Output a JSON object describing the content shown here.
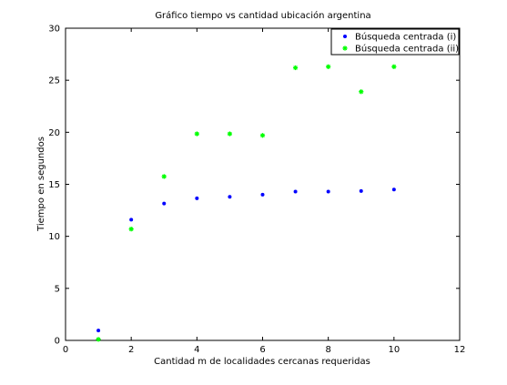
{
  "chart_data": {
    "type": "scatter",
    "title": "Gráfico tiempo vs cantidad ubicación argentina",
    "xlabel": "Cantidad m de localidades cercanas requeridas",
    "ylabel": "Tiempo en segundos",
    "xlim": [
      0,
      12
    ],
    "ylim": [
      0,
      30
    ],
    "xticks": [
      "0",
      "2",
      "4",
      "6",
      "8",
      "10",
      "12"
    ],
    "yticks": [
      "0",
      "5",
      "10",
      "15",
      "20",
      "25",
      "30"
    ],
    "grid": false,
    "legend_position": "top-right",
    "series": [
      {
        "name": "Búsqueda centrada (i)",
        "color": "#0000ff",
        "marker": "point",
        "x": [
          1,
          2,
          3,
          4,
          5,
          6,
          7,
          8,
          9,
          10
        ],
        "y": [
          0.95,
          11.6,
          13.15,
          13.65,
          13.8,
          14.0,
          14.3,
          14.3,
          14.35,
          14.5
        ]
      },
      {
        "name": "Búsqueda centrada (ii)",
        "color": "#00ff00",
        "marker": "star",
        "x": [
          1,
          2,
          3,
          4,
          5,
          6,
          7,
          8,
          9,
          10
        ],
        "y": [
          0.1,
          10.7,
          15.75,
          19.85,
          19.85,
          19.7,
          26.2,
          26.3,
          23.9,
          26.3
        ]
      }
    ]
  }
}
